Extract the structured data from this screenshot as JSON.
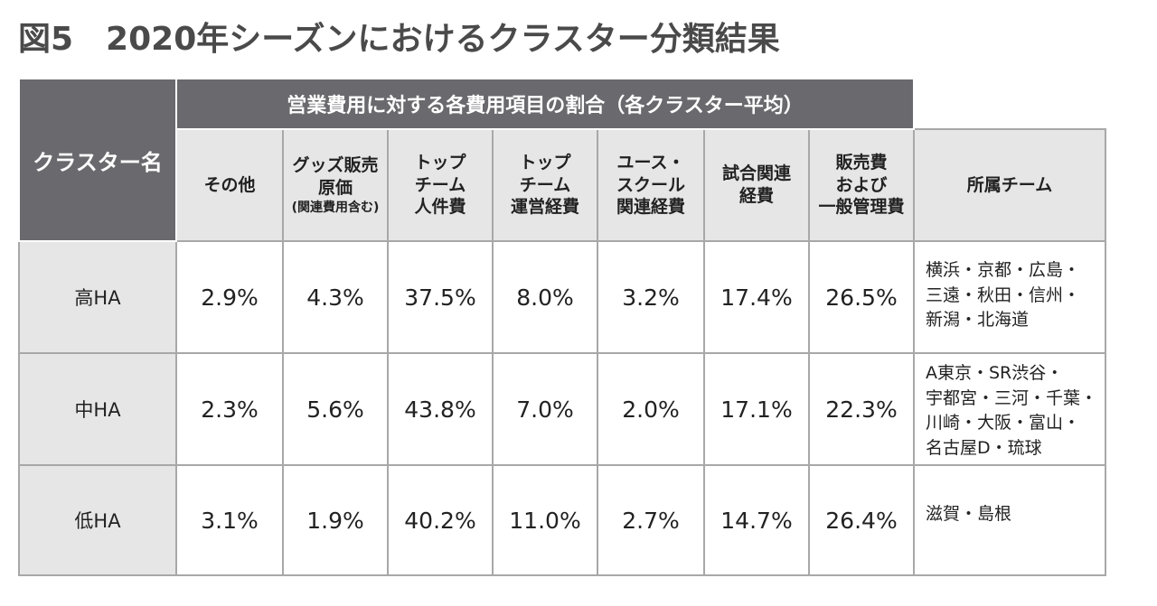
{
  "figure": {
    "title": "図5　2020年シーズンにおけるクラスター分類結果"
  },
  "table": {
    "corner_header": "クラスター名",
    "group_header": "営業費用に対する各費用項目の割合（各クラスター平均）",
    "columns": [
      {
        "lines": [
          "その他"
        ],
        "note": ""
      },
      {
        "lines": [
          "グッズ販売",
          "原価"
        ],
        "note": "(関連費用含む)"
      },
      {
        "lines": [
          "トップ",
          "チーム",
          "人件費"
        ],
        "note": ""
      },
      {
        "lines": [
          "トップ",
          "チーム",
          "運営経費"
        ],
        "note": ""
      },
      {
        "lines": [
          "ユース・",
          "スクール",
          "関連経費"
        ],
        "note": ""
      },
      {
        "lines": [
          "試合関連",
          "経費"
        ],
        "note": ""
      },
      {
        "lines": [
          "販売費",
          "および",
          "一般管理費"
        ],
        "note": ""
      }
    ],
    "teams_header": "所属チーム",
    "rows": [
      {
        "label": "高HA",
        "values": [
          "2.9%",
          "4.3%",
          "37.5%",
          "8.0%",
          "3.2%",
          "17.4%",
          "26.5%"
        ],
        "teams": [
          "横浜・京都・広島・",
          "三遠・秋田・信州・",
          "新潟・北海道"
        ]
      },
      {
        "label": "中HA",
        "values": [
          "2.3%",
          "5.6%",
          "43.8%",
          "7.0%",
          "2.0%",
          "17.1%",
          "22.3%"
        ],
        "teams": [
          "A東京・SR渋谷・",
          "宇都宮・三河・千葉・",
          "川崎・大阪・富山・",
          "名古屋D・琉球"
        ]
      },
      {
        "label": "低HA",
        "values": [
          "3.1%",
          "1.9%",
          "40.2%",
          "11.0%",
          "2.7%",
          "14.7%",
          "26.4%"
        ],
        "teams": [
          "滋賀・島根"
        ]
      }
    ]
  },
  "colors": {
    "header_dark": "#6a6a6e",
    "header_light": "#e6e6e6",
    "border": "#a8a8a8",
    "title": "#4a4a4a"
  }
}
